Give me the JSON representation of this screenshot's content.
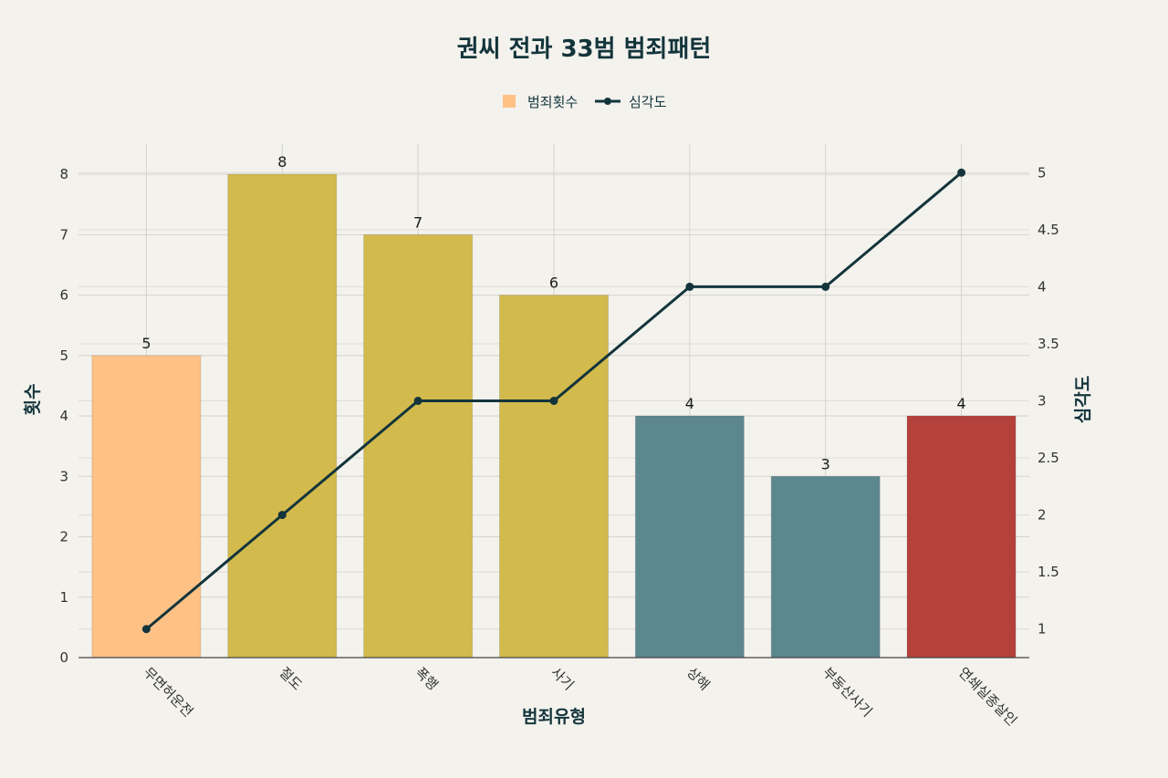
{
  "colors": {
    "background": "#f3f2ed",
    "grid": "#d4d3cc",
    "line": "#13343b",
    "axis": "#444444"
  },
  "chart_data": {
    "type": "bar",
    "title": "권씨 전과 33범 범죄패턴",
    "xlabel": "범죄유형",
    "ylabel": "횟수",
    "y2label": "심각도",
    "categories": [
      "무면허운전",
      "절도",
      "폭행",
      "사기",
      "상해",
      "부동산사기",
      "연쇄실종살인"
    ],
    "series": [
      {
        "name": "범죄횟수",
        "type": "bar",
        "axis": "left",
        "values": [
          5,
          8,
          7,
          6,
          4,
          3,
          4
        ],
        "colors": [
          "#ffc185",
          "#d2ba4c",
          "#d2ba4c",
          "#d2ba4c",
          "#5d878f",
          "#5d878f",
          "#b4413c"
        ],
        "legend_color": "#ffc185"
      },
      {
        "name": "심각도",
        "type": "line",
        "axis": "right",
        "values": [
          1,
          2,
          3,
          3,
          4,
          4,
          5
        ],
        "color": "#13343b"
      }
    ],
    "ylim": [
      0,
      8.5
    ],
    "y2lim": [
      0.75,
      5.25
    ],
    "yticks": [
      0,
      1,
      2,
      3,
      4,
      5,
      6,
      7,
      8
    ],
    "y2ticks": [
      1,
      1.5,
      2,
      2.5,
      3,
      3.5,
      4,
      4.5,
      5
    ],
    "grid": true,
    "legend_position": "top-center",
    "data_labels": true
  }
}
